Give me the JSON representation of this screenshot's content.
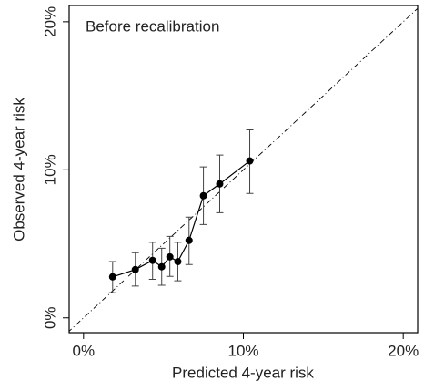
{
  "chart_data": {
    "type": "scatter",
    "title": "Before recalibration",
    "x_label": "Predicted 4-year risk",
    "y_label": "Observed 4-year risk",
    "x": [
      1.82,
      3.24,
      4.32,
      4.89,
      5.4,
      5.9,
      6.6,
      7.5,
      8.52,
      10.4
    ],
    "values": [
      2.77,
      3.26,
      3.88,
      3.45,
      4.12,
      3.8,
      5.23,
      8.25,
      9.05,
      10.6
    ],
    "lower": [
      1.7,
      2.15,
      2.6,
      2.2,
      2.8,
      2.5,
      3.6,
      6.3,
      7.1,
      8.4
    ],
    "upper": [
      3.8,
      4.4,
      5.1,
      4.7,
      5.5,
      5.1,
      6.8,
      10.2,
      11.0,
      12.7
    ],
    "color": "#000000",
    "xlim": [
      -0.9,
      20.9
    ],
    "ylim": [
      -1,
      21.1
    ],
    "xticks": [
      {
        "value": 0,
        "label": "0%"
      },
      {
        "value": 10,
        "label": "10%"
      },
      {
        "value": 20,
        "label": "20%"
      }
    ],
    "yticks": [
      {
        "value": 0,
        "label": "0%"
      },
      {
        "value": 10,
        "label": "10%"
      },
      {
        "value": 20,
        "label": "20%"
      }
    ],
    "reference_line": true
  }
}
